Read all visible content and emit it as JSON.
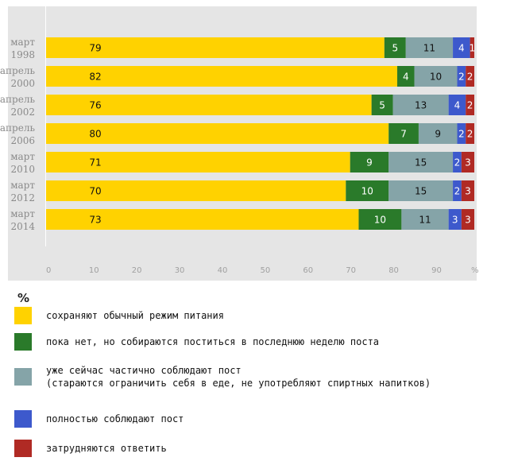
{
  "chart_data": {
    "type": "bar",
    "orientation": "horizontal",
    "stacked": true,
    "categories": [
      [
        "март",
        "1998"
      ],
      [
        "апрель",
        "2000"
      ],
      [
        "апрель",
        "2002"
      ],
      [
        "апрель",
        "2006"
      ],
      [
        "март",
        "2010"
      ],
      [
        "март",
        "2012"
      ],
      [
        "март",
        "2014"
      ]
    ],
    "series": [
      {
        "name": "сохраняют обычный режим питания",
        "color": "#ffd200",
        "values": [
          79,
          82,
          76,
          80,
          71,
          70,
          73
        ]
      },
      {
        "name": "пока нет, но собираются поститься в последнюю неделю поста",
        "color": "#2a7a2a",
        "values": [
          5,
          4,
          5,
          7,
          9,
          10,
          10
        ]
      },
      {
        "name": "уже сейчас частично соблюдают пост\n(стараются ограничить себя в еде, не употребляют спиртных напитков)",
        "color": "#85a4a8",
        "values": [
          11,
          10,
          13,
          9,
          15,
          15,
          11
        ]
      },
      {
        "name": "полностью соблюдают пост",
        "color": "#3d59cc",
        "values": [
          4,
          2,
          4,
          2,
          2,
          2,
          3
        ]
      },
      {
        "name": "затрудняются ответить",
        "color": "#b02a24",
        "values": [
          1,
          2,
          2,
          2,
          3,
          3,
          3
        ]
      }
    ],
    "xticks": [
      "0",
      "10",
      "20",
      "30",
      "40",
      "50",
      "60",
      "70",
      "80",
      "90"
    ],
    "xunit": "%",
    "xlim": [
      0,
      100
    ],
    "grid": false
  },
  "legend": {
    "title": "%"
  }
}
